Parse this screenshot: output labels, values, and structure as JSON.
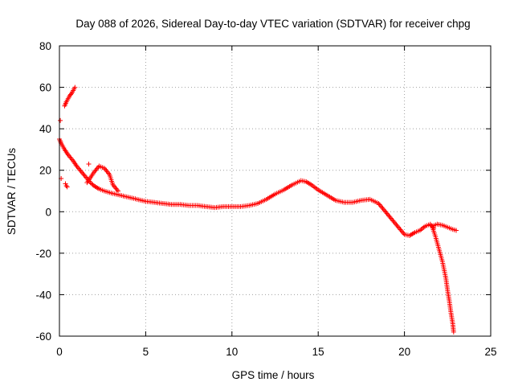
{
  "chart_data": {
    "type": "scatter",
    "title": "Day 088 of 2026, Sidereal Day-to-day VTEC variation (SDTVAR) for receiver chpg",
    "xlabel": "GPS time / hours",
    "ylabel": "SDTVAR / TECUs",
    "xlim": [
      0,
      25
    ],
    "ylim": [
      -60,
      80
    ],
    "xticks": [
      "0",
      "5",
      "10",
      "15",
      "20",
      "25"
    ],
    "yticks": [
      "-60",
      "-40",
      "-20",
      "0",
      "20",
      "40",
      "60",
      "80"
    ],
    "grid": true,
    "marker": "+",
    "series": [
      {
        "name": "Main trace",
        "color": "#ff0000",
        "x": [
          0.0,
          0.1,
          0.3,
          0.5,
          0.8,
          1.0,
          1.3,
          1.6,
          1.8,
          2.0,
          2.3,
          2.6,
          3.0,
          3.5,
          4.0,
          4.5,
          5.0,
          5.5,
          6.0,
          6.5,
          7.0,
          7.5,
          8.0,
          8.5,
          9.0,
          9.5,
          10.0,
          10.5,
          11.0,
          11.5,
          12.0,
          12.5,
          13.0,
          13.5,
          14.0,
          14.3,
          14.6,
          15.0,
          15.5,
          16.0,
          16.5,
          17.0,
          17.5,
          18.0,
          18.5,
          18.8,
          19.1,
          19.4,
          19.7,
          20.0,
          20.3,
          20.6,
          20.9,
          21.2,
          21.5,
          21.7
        ],
        "y": [
          35.0,
          33.0,
          30.0,
          27.5,
          24.5,
          22.0,
          19.0,
          16.0,
          14.0,
          12.5,
          11.0,
          10.0,
          9.0,
          8.0,
          7.0,
          6.0,
          5.0,
          4.5,
          4.0,
          3.5,
          3.5,
          3.0,
          3.0,
          2.5,
          2.0,
          2.5,
          2.5,
          2.5,
          3.0,
          4.0,
          6.0,
          8.5,
          10.5,
          13.0,
          15.0,
          14.5,
          13.0,
          10.5,
          8.0,
          5.5,
          4.5,
          4.5,
          5.5,
          6.0,
          4.0,
          1.0,
          -2.0,
          -5.0,
          -8.0,
          -11.0,
          -11.5,
          -10.0,
          -9.0,
          -7.0,
          -6.0,
          -8.0
        ]
      },
      {
        "name": "Upper branch",
        "color": "#ff0000",
        "x": [
          1.6,
          2.0,
          2.3,
          2.6,
          2.9,
          3.1,
          3.4
        ],
        "y": [
          14.0,
          19.0,
          22.0,
          21.0,
          18.0,
          13.0,
          10.0
        ]
      },
      {
        "name": "Early arc",
        "color": "#ff0000",
        "x": [
          0.3,
          0.4,
          0.5,
          0.6,
          0.7,
          0.8,
          0.9
        ],
        "y": [
          51.0,
          53.0,
          54.5,
          56.0,
          57.0,
          58.5,
          60.0
        ]
      },
      {
        "name": "Late decline",
        "color": "#ff0000",
        "x": [
          21.6,
          21.8,
          22.0,
          22.2,
          22.4,
          22.5,
          22.6,
          22.7,
          22.8,
          22.85
        ],
        "y": [
          -7.0,
          -12.0,
          -18.0,
          -24.0,
          -32.0,
          -38.0,
          -43.0,
          -49.0,
          -54.0,
          -58.0
        ]
      },
      {
        "name": "Late flat",
        "color": "#ff0000",
        "x": [
          21.6,
          21.9,
          22.2,
          22.5,
          22.8,
          23.0
        ],
        "y": [
          -7.0,
          -6.0,
          -6.5,
          -7.5,
          -8.5,
          -9.0
        ]
      },
      {
        "name": "Isolated points",
        "color": "#ff0000",
        "x": [
          0.05,
          0.1,
          0.35,
          0.4,
          0.45,
          1.7
        ],
        "y": [
          44.0,
          16.0,
          13.5,
          12.5,
          12.0,
          23.0
        ]
      }
    ]
  }
}
